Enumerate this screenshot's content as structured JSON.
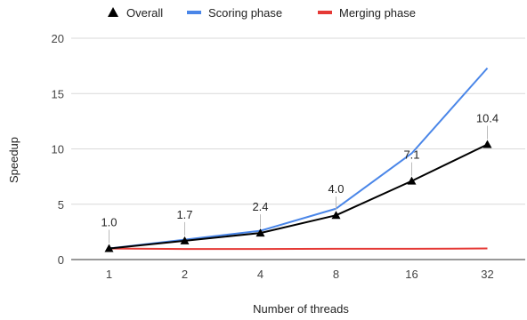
{
  "chart_data": {
    "type": "line",
    "categories": [
      "1",
      "2",
      "4",
      "8",
      "16",
      "32"
    ],
    "xlabel": "Number of threads",
    "ylabel": "Speedup",
    "ylim": [
      0,
      20
    ],
    "yticks": [
      "0",
      "5",
      "10",
      "15",
      "20"
    ],
    "grid": "horizontal",
    "legend_position": "top",
    "series": [
      {
        "name": "Overall",
        "color": "#000000",
        "marker": "triangle",
        "values": [
          1.0,
          1.7,
          2.4,
          4.0,
          7.1,
          10.4
        ],
        "labels": [
          "1.0",
          "1.7",
          "2.4",
          "4.0",
          "7.1",
          "10.4"
        ]
      },
      {
        "name": "Scoring phase",
        "color": "#4a86e8",
        "marker": "none",
        "values": [
          1.0,
          1.8,
          2.6,
          4.6,
          9.6,
          17.3
        ]
      },
      {
        "name": "Merging phase",
        "color": "#e53935",
        "marker": "none",
        "values": [
          1.0,
          0.95,
          0.95,
          0.97,
          0.97,
          1.0
        ]
      }
    ]
  }
}
